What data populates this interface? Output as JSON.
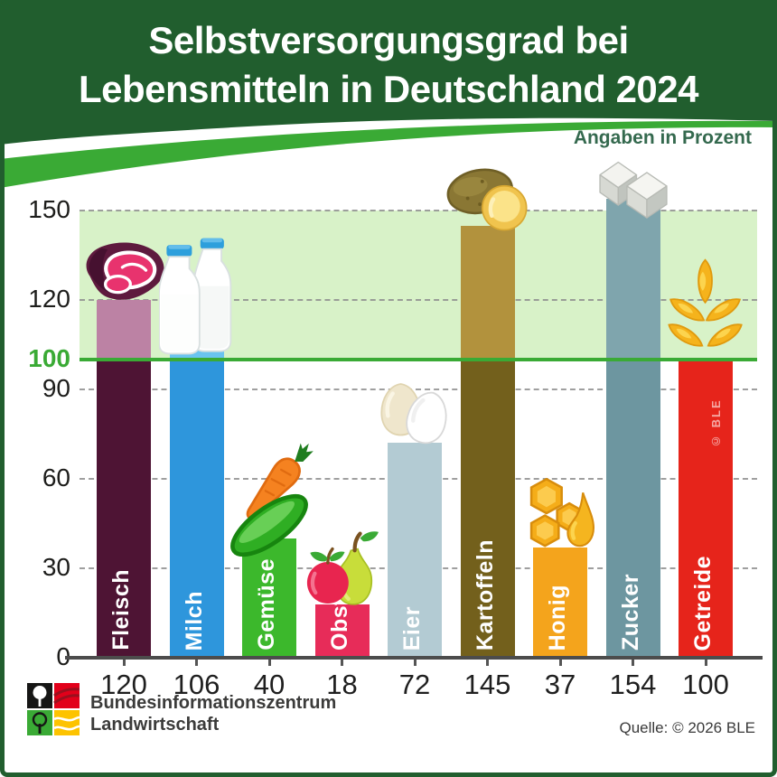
{
  "header": {
    "title_line1": "Selbstversorgungsgrad bei",
    "title_line2": "Lebensmitteln in Deutschland 2024",
    "unit_note": "Angaben in Prozent"
  },
  "chart_data": {
    "type": "bar",
    "title": "Selbstversorgungsgrad bei Lebensmitteln in Deutschland 2024",
    "unit": "Prozent",
    "categories": [
      "Fleisch",
      "Milch",
      "Gemüse",
      "Obst",
      "Eier",
      "Kartoffeln",
      "Honig",
      "Zucker",
      "Getreide"
    ],
    "values": [
      120,
      106,
      40,
      18,
      72,
      145,
      37,
      154,
      100
    ],
    "series": [
      {
        "label": "Fleisch",
        "value": 120,
        "color": "#4e1434",
        "color_above": "#bc82a4",
        "icon": "meat"
      },
      {
        "label": "Milch",
        "value": 106,
        "color": "#2e96dc",
        "color_above": "#6ac4f0",
        "icon": "milk"
      },
      {
        "label": "Gemüse",
        "value": 40,
        "color": "#3cb82c",
        "icon": "vegetables"
      },
      {
        "label": "Obst",
        "value": 18,
        "color": "#e72c59",
        "icon": "fruit"
      },
      {
        "label": "Eier",
        "value": 72,
        "color": "#b3cbd3",
        "icon": "eggs"
      },
      {
        "label": "Kartoffeln",
        "value": 145,
        "color": "#73601c",
        "color_above": "#b2923d",
        "icon": "potatoes"
      },
      {
        "label": "Honig",
        "value": 37,
        "color": "#f4a41c",
        "icon": "honey"
      },
      {
        "label": "Zucker",
        "value": 154,
        "color": "#6d96a0",
        "color_above": "#7fa5ad",
        "icon": "sugar"
      },
      {
        "label": "Getreide",
        "value": 100,
        "color": "#e6241b",
        "icon": "grain"
      }
    ],
    "yticks": [
      0,
      30,
      60,
      90,
      100,
      120,
      150
    ],
    "ylim": [
      0,
      168
    ],
    "reference_line": 100,
    "band": [
      100,
      150
    ],
    "grid": "dashed horizontal at 30,60,90,120,150",
    "legend_position": "none"
  },
  "watermark": "© BLE",
  "footer": {
    "org_line1": "Bundesinformationszentrum",
    "org_line2": "Landwirtschaft",
    "source": "Quelle: © 2026 BLE"
  },
  "colors": {
    "header_green": "#215e2e",
    "accent_green": "#3aaa35",
    "band_green": "#d8f2c8",
    "note_green": "#34694e",
    "axis_text": "#1d1d1b",
    "reference_text": "#3aaa35",
    "grid_gray": "#8f8f8f",
    "baseline_gray": "#4c4c4c",
    "title_white": "#ffffff"
  }
}
